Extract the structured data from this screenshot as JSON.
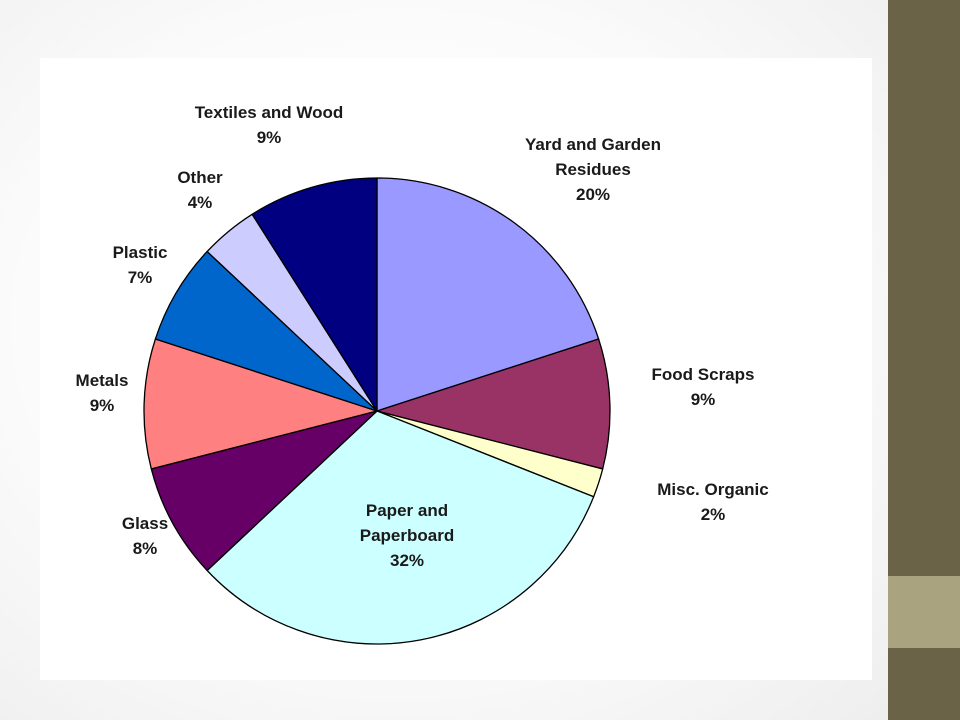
{
  "chart_data": {
    "type": "pie",
    "start_angle_deg": 0,
    "direction": "clockwise",
    "slices": [
      {
        "label_lines": [
          "Yard and Garden",
          "Residues"
        ],
        "percent_label": "20%",
        "value": 20,
        "color": "#9999ff"
      },
      {
        "label_lines": [
          "Food Scraps"
        ],
        "percent_label": "9%",
        "value": 9,
        "color": "#993366"
      },
      {
        "label_lines": [
          "Misc. Organic"
        ],
        "percent_label": "2%",
        "value": 2,
        "color": "#ffffcc"
      },
      {
        "label_lines": [
          "Paper and",
          "Paperboard"
        ],
        "percent_label": "32%",
        "value": 32,
        "color": "#ccffff"
      },
      {
        "label_lines": [
          "Glass"
        ],
        "percent_label": "8%",
        "value": 8,
        "color": "#660066"
      },
      {
        "label_lines": [
          "Metals"
        ],
        "percent_label": "9%",
        "value": 9,
        "color": "#ff8080"
      },
      {
        "label_lines": [
          "Plastic"
        ],
        "percent_label": "7%",
        "value": 7,
        "color": "#0066cc"
      },
      {
        "label_lines": [
          "Other"
        ],
        "percent_label": "4%",
        "value": 4,
        "color": "#ccccff"
      },
      {
        "label_lines": [
          "Textiles and Wood"
        ],
        "percent_label": "9%",
        "value": 9,
        "color": "#000080"
      }
    ]
  }
}
